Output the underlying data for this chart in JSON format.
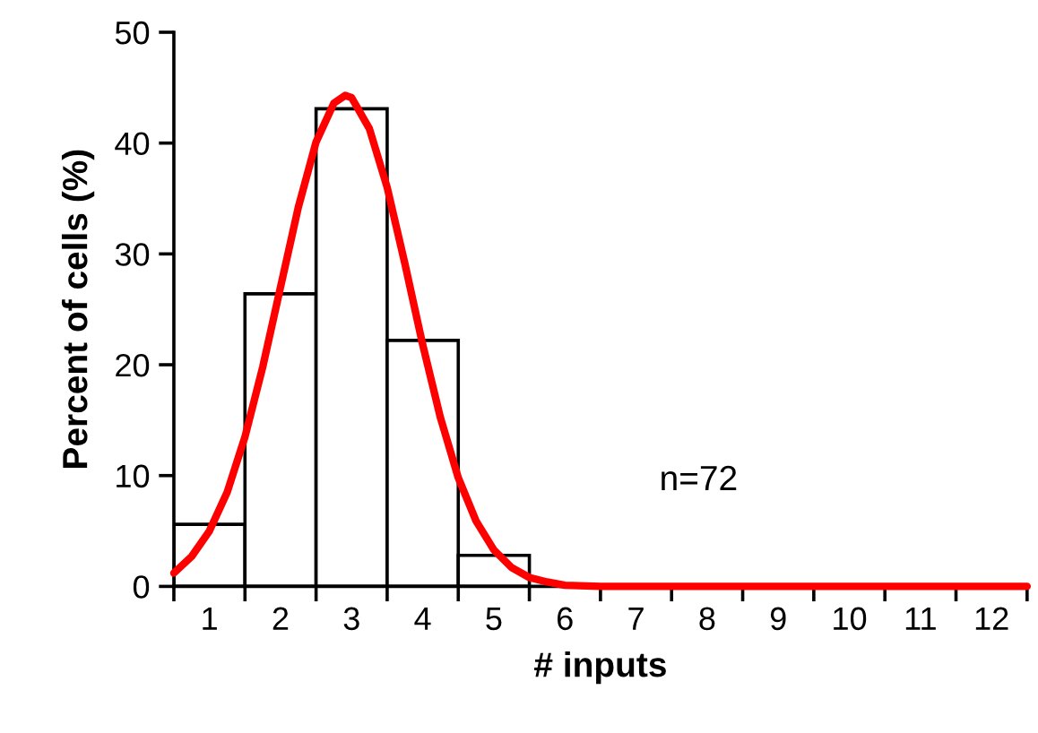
{
  "chart_data": {
    "type": "histogram",
    "xlabel": "# inputs",
    "ylabel": "Percent of cells (%)",
    "bins": [
      0.5,
      1.5,
      2.5,
      3.5,
      4.5,
      5.5
    ],
    "values": [
      5.6,
      26.4,
      43.1,
      22.2,
      2.8
    ],
    "color": "#ffffff",
    "series": [
      {
        "type": "line",
        "color": "#ff0000",
        "x": [
          0.5,
          0.75,
          1.0,
          1.25,
          1.5,
          1.75,
          2.0,
          2.25,
          2.5,
          2.75,
          2.91,
          3.0,
          3.25,
          3.5,
          3.75,
          4.0,
          4.25,
          4.5,
          4.75,
          5.0,
          5.25,
          5.5,
          5.75,
          6.0,
          6.5,
          7.5,
          8.5,
          9.5,
          10.5,
          11.5,
          12.5
        ],
        "values": [
          1.2,
          2.7,
          5.0,
          8.5,
          13.5,
          19.8,
          27.0,
          34.2,
          40.1,
          43.6,
          44.3,
          44.1,
          41.3,
          36.0,
          29.1,
          21.8,
          15.2,
          9.8,
          5.9,
          3.3,
          1.7,
          0.8,
          0.4,
          0.1,
          0,
          0,
          0,
          0,
          0,
          0,
          0
        ]
      }
    ],
    "xlim": [
      0.5,
      12.5
    ],
    "xticks": [
      {
        "value": 0.5,
        "label": null
      },
      {
        "value": 1,
        "label": "1"
      },
      {
        "value": 1.5,
        "label": null
      },
      {
        "value": 2,
        "label": "2"
      },
      {
        "value": 2.5,
        "label": null
      },
      {
        "value": 3,
        "label": "3"
      },
      {
        "value": 3.5,
        "label": null
      },
      {
        "value": 4,
        "label": "4"
      },
      {
        "value": 4.5,
        "label": null
      },
      {
        "value": 5,
        "label": "5"
      },
      {
        "value": 5.5,
        "label": null
      },
      {
        "value": 6,
        "label": "6"
      },
      {
        "value": 6.5,
        "label": null
      },
      {
        "value": 7,
        "label": "7"
      },
      {
        "value": 7.5,
        "label": null
      },
      {
        "value": 8,
        "label": "8"
      },
      {
        "value": 8.5,
        "label": null
      },
      {
        "value": 9,
        "label": "9"
      },
      {
        "value": 9.5,
        "label": null
      },
      {
        "value": 10,
        "label": "10"
      },
      {
        "value": 10.5,
        "label": null
      },
      {
        "value": 11,
        "label": "11"
      },
      {
        "value": 11.5,
        "label": null
      },
      {
        "value": 12,
        "label": "12"
      },
      {
        "value": 12.5,
        "label": null
      }
    ],
    "ylim": [
      0,
      50
    ],
    "yticks": [
      0,
      10,
      20,
      30,
      40,
      50
    ],
    "grid": false,
    "legend": false,
    "annotations": [
      "n=72"
    ]
  }
}
